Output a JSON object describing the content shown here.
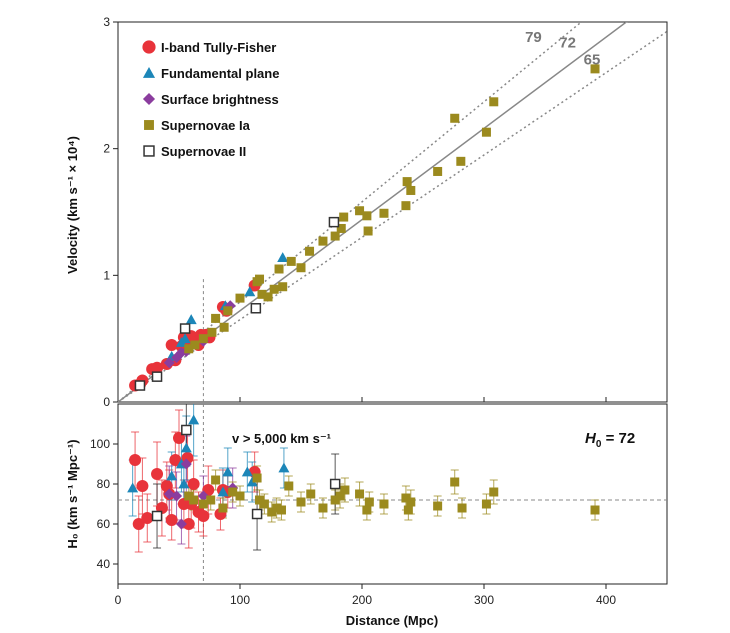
{
  "chart_data": [
    {
      "type": "scatter",
      "panel": "top",
      "xlabel": "",
      "ylabel": "Velocity (km s⁻¹ × 10⁴)",
      "xlim": [
        0,
        450
      ],
      "ylim": [
        0,
        3
      ],
      "yticks": [
        "0",
        "1",
        "2",
        "3"
      ],
      "reference_lines": [
        {
          "label": "79",
          "slope": 79,
          "style": "dotted"
        },
        {
          "label": "72",
          "slope": 72,
          "style": "solid"
        },
        {
          "label": "65",
          "slope": 65,
          "style": "dotted"
        }
      ],
      "vertical_marker_x": 70,
      "legend_position": "top-left",
      "series": [
        {
          "name": "I-band Tully-Fisher",
          "color": "#e8333a",
          "marker": "circle",
          "points": [
            [
              14,
              0.13
            ],
            [
              18,
              0.14
            ],
            [
              20,
              0.17
            ],
            [
              28,
              0.26
            ],
            [
              32,
              0.27
            ],
            [
              40,
              0.3
            ],
            [
              44,
              0.45
            ],
            [
              47,
              0.33
            ],
            [
              52,
              0.44
            ],
            [
              54,
              0.51
            ],
            [
              57,
              0.48
            ],
            [
              60,
              0.52
            ],
            [
              63,
              0.47
            ],
            [
              66,
              0.45
            ],
            [
              68,
              0.53
            ],
            [
              72,
              0.53
            ],
            [
              75,
              0.51
            ],
            [
              86,
              0.75
            ],
            [
              89,
              0.72
            ],
            [
              112,
              0.92
            ]
          ]
        },
        {
          "name": "Fundamental plane",
          "color": "#1c86b8",
          "marker": "triangle",
          "points": [
            [
              44,
              0.36
            ],
            [
              52,
              0.47
            ],
            [
              55,
              0.5
            ],
            [
              60,
              0.65
            ],
            [
              88,
              0.76
            ],
            [
              108,
              0.87
            ],
            [
              135,
              1.14
            ]
          ]
        },
        {
          "name": "Surface brightness",
          "color": "#8b3d9e",
          "marker": "diamond",
          "points": [
            [
              42,
              0.31
            ],
            [
              48,
              0.35
            ],
            [
              52,
              0.39
            ],
            [
              56,
              0.4
            ],
            [
              70,
              0.48
            ],
            [
              92,
              0.76
            ]
          ]
        },
        {
          "name": "Supernovae Ia",
          "color": "#9b8a1e",
          "marker": "square",
          "points": [
            [
              58,
              0.42
            ],
            [
              63,
              0.45
            ],
            [
              70,
              0.5
            ],
            [
              77,
              0.55
            ],
            [
              80,
              0.66
            ],
            [
              87,
              0.59
            ],
            [
              90,
              0.72
            ],
            [
              100,
              0.82
            ],
            [
              114,
              0.95
            ],
            [
              116,
              0.97
            ],
            [
              118,
              0.85
            ],
            [
              123,
              0.83
            ],
            [
              128,
              0.89
            ],
            [
              132,
              1.05
            ],
            [
              135,
              0.91
            ],
            [
              142,
              1.11
            ],
            [
              150,
              1.06
            ],
            [
              157,
              1.19
            ],
            [
              168,
              1.27
            ],
            [
              178,
              1.31
            ],
            [
              183,
              1.37
            ],
            [
              185,
              1.46
            ],
            [
              198,
              1.51
            ],
            [
              204,
              1.47
            ],
            [
              205,
              1.35
            ],
            [
              218,
              1.49
            ],
            [
              236,
              1.55
            ],
            [
              237,
              1.74
            ],
            [
              240,
              1.67
            ],
            [
              262,
              1.82
            ],
            [
              276,
              2.24
            ],
            [
              281,
              1.9
            ],
            [
              302,
              2.13
            ],
            [
              308,
              2.37
            ],
            [
              391,
              2.63
            ]
          ]
        },
        {
          "name": "Supernovae II",
          "color": "#333333",
          "marker": "open-square",
          "points": [
            [
              18,
              0.13
            ],
            [
              32,
              0.2
            ],
            [
              55,
              0.58
            ],
            [
              113,
              0.74
            ],
            [
              177,
              1.42
            ]
          ]
        }
      ]
    },
    {
      "type": "scatter",
      "panel": "bottom",
      "xlabel": "Distance (Mpc)",
      "ylabel": "H₀ (km s⁻¹ Mpc⁻¹)",
      "xlim": [
        0,
        450
      ],
      "ylim": [
        30,
        120
      ],
      "xticks": [
        "0",
        "100",
        "200",
        "300",
        "400"
      ],
      "yticks": [
        "40",
        "60",
        "80",
        "100"
      ],
      "reference_lines": [
        {
          "label": "",
          "y": 72,
          "style": "dashed"
        }
      ],
      "vertical_marker_x": 70,
      "annotations": {
        "velocity_cut": "v > 5,000 km s⁻¹",
        "h0_label": "H",
        "h0_sub": "0",
        "h0_value": " = 72"
      },
      "series": [
        {
          "name": "I-band Tully-Fisher",
          "color": "#e8333a",
          "marker": "circle",
          "points": [
            [
              14,
              92,
              14
            ],
            [
              17,
              60,
              14
            ],
            [
              20,
              79,
              14
            ],
            [
              24,
              63,
              12
            ],
            [
              32,
              85,
              16
            ],
            [
              36,
              68,
              14
            ],
            [
              40,
              79,
              12
            ],
            [
              42,
              75,
              12
            ],
            [
              44,
              62,
              10
            ],
            [
              47,
              92,
              14
            ],
            [
              50,
              103,
              14
            ],
            [
              54,
              70,
              12
            ],
            [
              57,
              93,
              12
            ],
            [
              58,
              60,
              12
            ],
            [
              60,
              70,
              12
            ],
            [
              62,
              80,
              12
            ],
            [
              66,
              66,
              10
            ],
            [
              70,
              64,
              10
            ],
            [
              74,
              77,
              12
            ],
            [
              84,
              65,
              8
            ],
            [
              86,
              77,
              10
            ],
            [
              90,
              76,
              8
            ],
            [
              112,
              86,
              10
            ]
          ]
        },
        {
          "name": "Fundamental plane",
          "color": "#1c86b8",
          "marker": "triangle",
          "points": [
            [
              12,
              78,
              14
            ],
            [
              44,
              84,
              12
            ],
            [
              52,
              90,
              14
            ],
            [
              54,
              80,
              12
            ],
            [
              56,
              98,
              16
            ],
            [
              62,
              112,
              18
            ],
            [
              86,
              76,
              12
            ],
            [
              90,
              86,
              12
            ],
            [
              106,
              86,
              10
            ],
            [
              110,
              81,
              10
            ],
            [
              136,
              88,
              10
            ]
          ]
        },
        {
          "name": "Surface brightness",
          "color": "#8b3d9e",
          "marker": "diamond",
          "points": [
            [
              42,
              75,
              14
            ],
            [
              48,
              74,
              12
            ],
            [
              52,
              60,
              10
            ],
            [
              56,
              90,
              14
            ],
            [
              70,
              74,
              10
            ],
            [
              94,
              78,
              10
            ]
          ]
        },
        {
          "name": "Supernovae Ia",
          "color": "#9b8a1e",
          "marker": "square",
          "points": [
            [
              58,
              74,
              5
            ],
            [
              62,
              72,
              5
            ],
            [
              70,
              70,
              5
            ],
            [
              76,
              72,
              5
            ],
            [
              80,
              82,
              5
            ],
            [
              86,
              68,
              5
            ],
            [
              94,
              76,
              5
            ],
            [
              100,
              74,
              5
            ],
            [
              114,
              83,
              6
            ],
            [
              116,
              72,
              5
            ],
            [
              120,
              70,
              5
            ],
            [
              126,
              66,
              5
            ],
            [
              130,
              68,
              5
            ],
            [
              134,
              67,
              5
            ],
            [
              140,
              79,
              5
            ],
            [
              150,
              71,
              5
            ],
            [
              158,
              75,
              5
            ],
            [
              168,
              68,
              5
            ],
            [
              178,
              72,
              5
            ],
            [
              182,
              74,
              6
            ],
            [
              186,
              77,
              6
            ],
            [
              198,
              75,
              6
            ],
            [
              204,
              67,
              5
            ],
            [
              206,
              71,
              5
            ],
            [
              218,
              70,
              5
            ],
            [
              236,
              73,
              6
            ],
            [
              238,
              67,
              5
            ],
            [
              240,
              71,
              6
            ],
            [
              262,
              69,
              5
            ],
            [
              276,
              81,
              6
            ],
            [
              282,
              68,
              5
            ],
            [
              302,
              70,
              5
            ],
            [
              308,
              76,
              6
            ],
            [
              391,
              67,
              5
            ]
          ]
        },
        {
          "name": "Supernovae II",
          "color": "#333333",
          "marker": "open-square",
          "points": [
            [
              32,
              64,
              16
            ],
            [
              56,
              107,
              18
            ],
            [
              114,
              65,
              18
            ],
            [
              178,
              80,
              15
            ]
          ]
        }
      ]
    }
  ]
}
